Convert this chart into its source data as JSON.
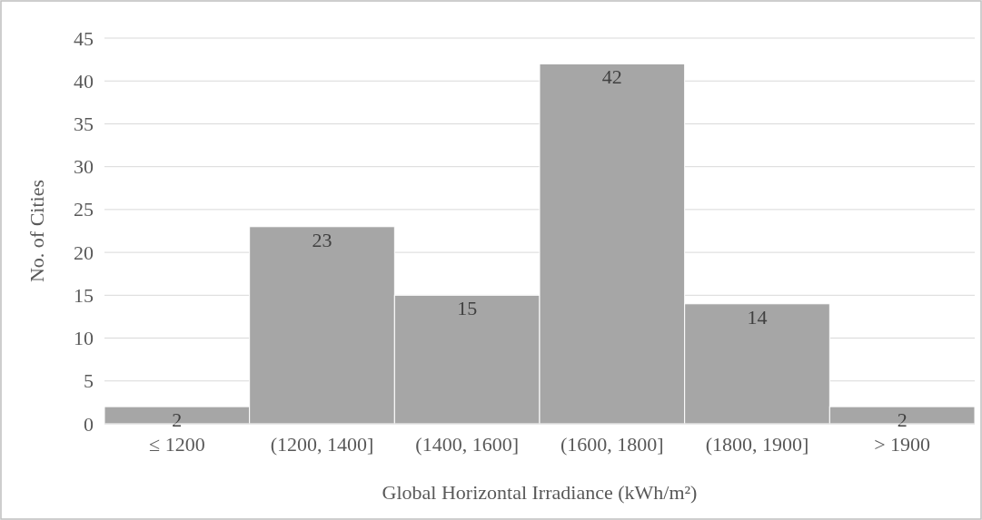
{
  "chart_data": {
    "type": "bar",
    "xlabel": "Global Horizontal Irradiance (kWh/m²)",
    "ylabel": "No. of Cities",
    "categories": [
      "≤ 1200",
      "(1200, 1400]",
      "(1400, 1600]",
      "(1600, 1800]",
      "(1800, 1900]",
      "> 1900"
    ],
    "values": [
      2,
      23,
      15,
      42,
      14,
      2
    ],
    "color": "#a6a6a6",
    "ylim": [
      0,
      45
    ],
    "yticks": [
      0,
      5,
      10,
      15,
      20,
      25,
      30,
      35,
      40,
      45
    ],
    "grid": "y",
    "data_labels": true
  }
}
